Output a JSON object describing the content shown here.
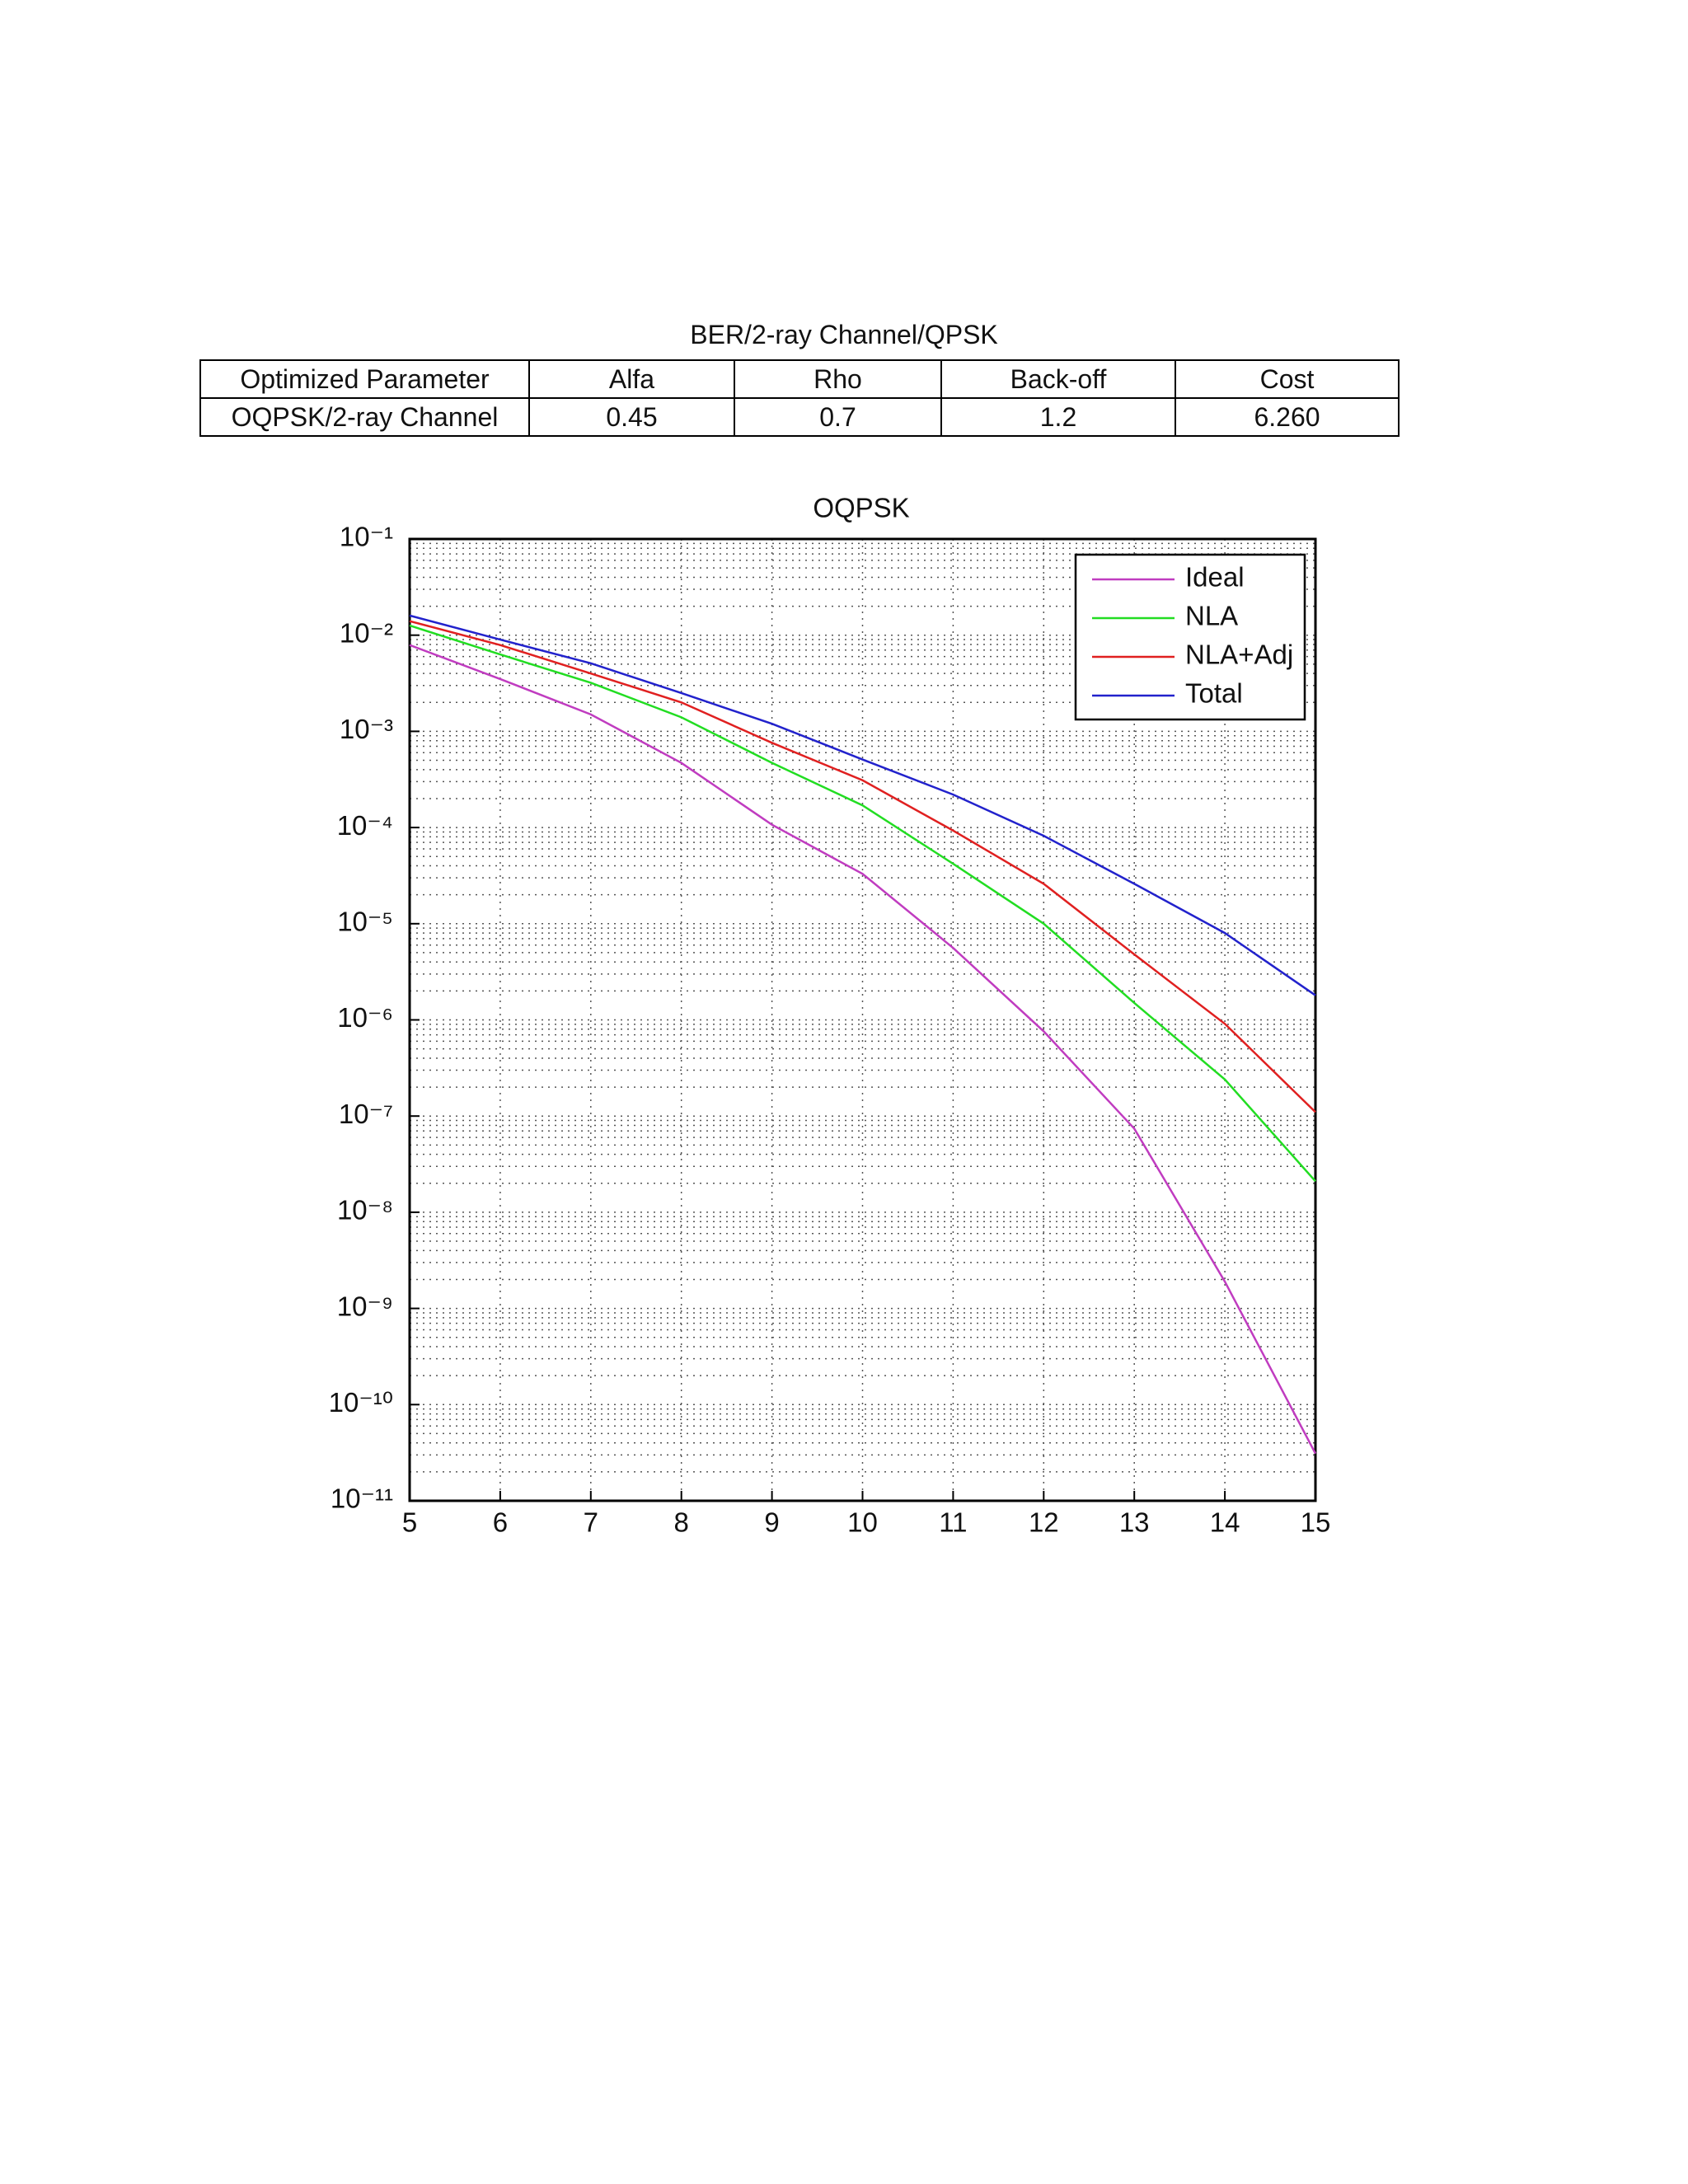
{
  "title": "BER/2-ray Channel/QPSK",
  "table": {
    "rows": [
      [
        "Optimized Parameter",
        "Alfa",
        "Rho",
        "Back-off",
        "Cost"
      ],
      [
        "OQPSK/2-ray Channel",
        "0.45",
        "0.7",
        "1.2",
        "6.260"
      ]
    ]
  },
  "chart_data": {
    "type": "line",
    "title": "OQPSK",
    "ylog": true,
    "grid": true,
    "legend": "upper right",
    "x": [
      5,
      6,
      7,
      8,
      9,
      10,
      11,
      12,
      13,
      14,
      15
    ],
    "xlim": [
      5,
      15
    ],
    "xticks": [
      5,
      6,
      7,
      8,
      9,
      10,
      11,
      12,
      13,
      14,
      15
    ],
    "ylim": [
      1e-11,
      0.1
    ],
    "yticks": [
      {
        "value": 0.1,
        "label": "10⁻¹"
      },
      {
        "value": 0.01,
        "label": "10⁻²"
      },
      {
        "value": 0.001,
        "label": "10⁻³"
      },
      {
        "value": 0.0001,
        "label": "10⁻⁴"
      },
      {
        "value": 1e-05,
        "label": "10⁻⁵"
      },
      {
        "value": 1e-06,
        "label": "10⁻⁶"
      },
      {
        "value": 1e-07,
        "label": "10⁻⁷"
      },
      {
        "value": 1e-08,
        "label": "10⁻⁸"
      },
      {
        "value": 1e-09,
        "label": "10⁻⁹"
      },
      {
        "value": 1e-10,
        "label": "10⁻¹⁰"
      },
      {
        "value": 1e-11,
        "label": "10⁻¹¹"
      }
    ],
    "series": [
      {
        "name": "Ideal",
        "color": "#c03cc0",
        "values": [
          0.0079,
          0.0035,
          0.0015,
          0.00047,
          0.000107,
          3.3e-05,
          5.6e-06,
          7.6e-07,
          7.4e-08,
          1.9e-09,
          3.1e-11
        ]
      },
      {
        "name": "NLA",
        "color": "#22dd22",
        "values": [
          0.0126,
          0.0063,
          0.0032,
          0.0014,
          0.00047,
          0.00017,
          4.2e-05,
          1e-05,
          1.5e-06,
          2.4e-07,
          2.1e-08
        ]
      },
      {
        "name": "NLA+Adj",
        "color": "#e02020",
        "values": [
          0.014,
          0.0079,
          0.004,
          0.002,
          0.00076,
          0.00031,
          9.3e-05,
          2.6e-05,
          4.8e-06,
          9.1e-07,
          1.1e-07
        ]
      },
      {
        "name": "Total",
        "color": "#2222cc",
        "values": [
          0.016,
          0.009,
          0.0051,
          0.0025,
          0.0012,
          0.00051,
          0.00022,
          8.2e-05,
          2.6e-05,
          8e-06,
          1.8e-06
        ]
      }
    ]
  }
}
